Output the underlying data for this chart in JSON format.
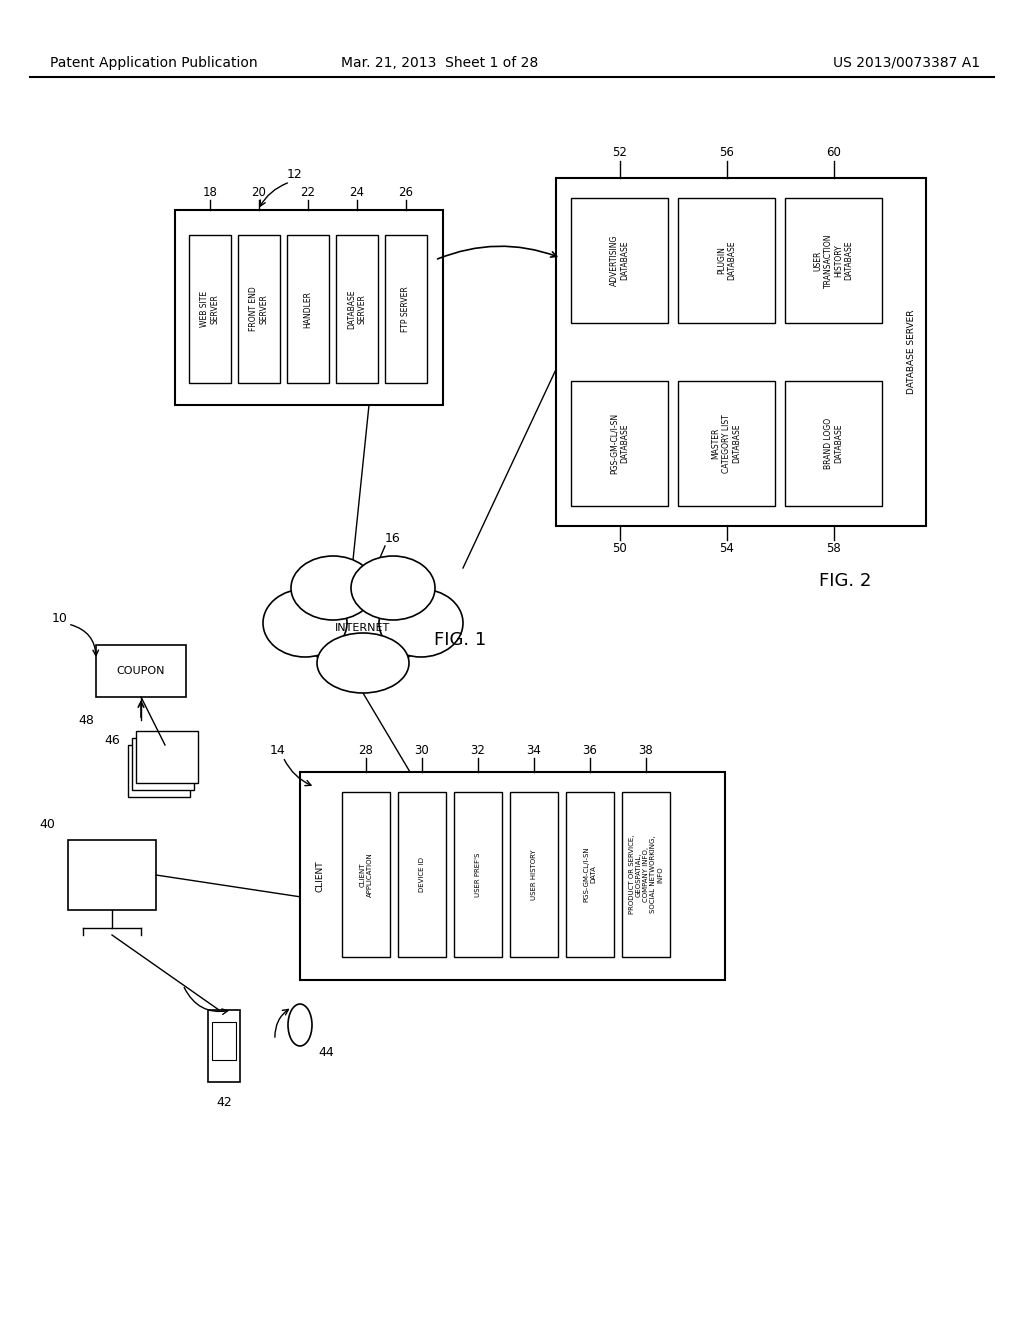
{
  "bg_color": "#ffffff",
  "header_left": "Patent Application Publication",
  "header_mid": "Mar. 21, 2013  Sheet 1 of 28",
  "header_right": "US 2013/0073387 A1",
  "fig1_label": "FIG. 1",
  "fig2_label": "FIG. 2"
}
